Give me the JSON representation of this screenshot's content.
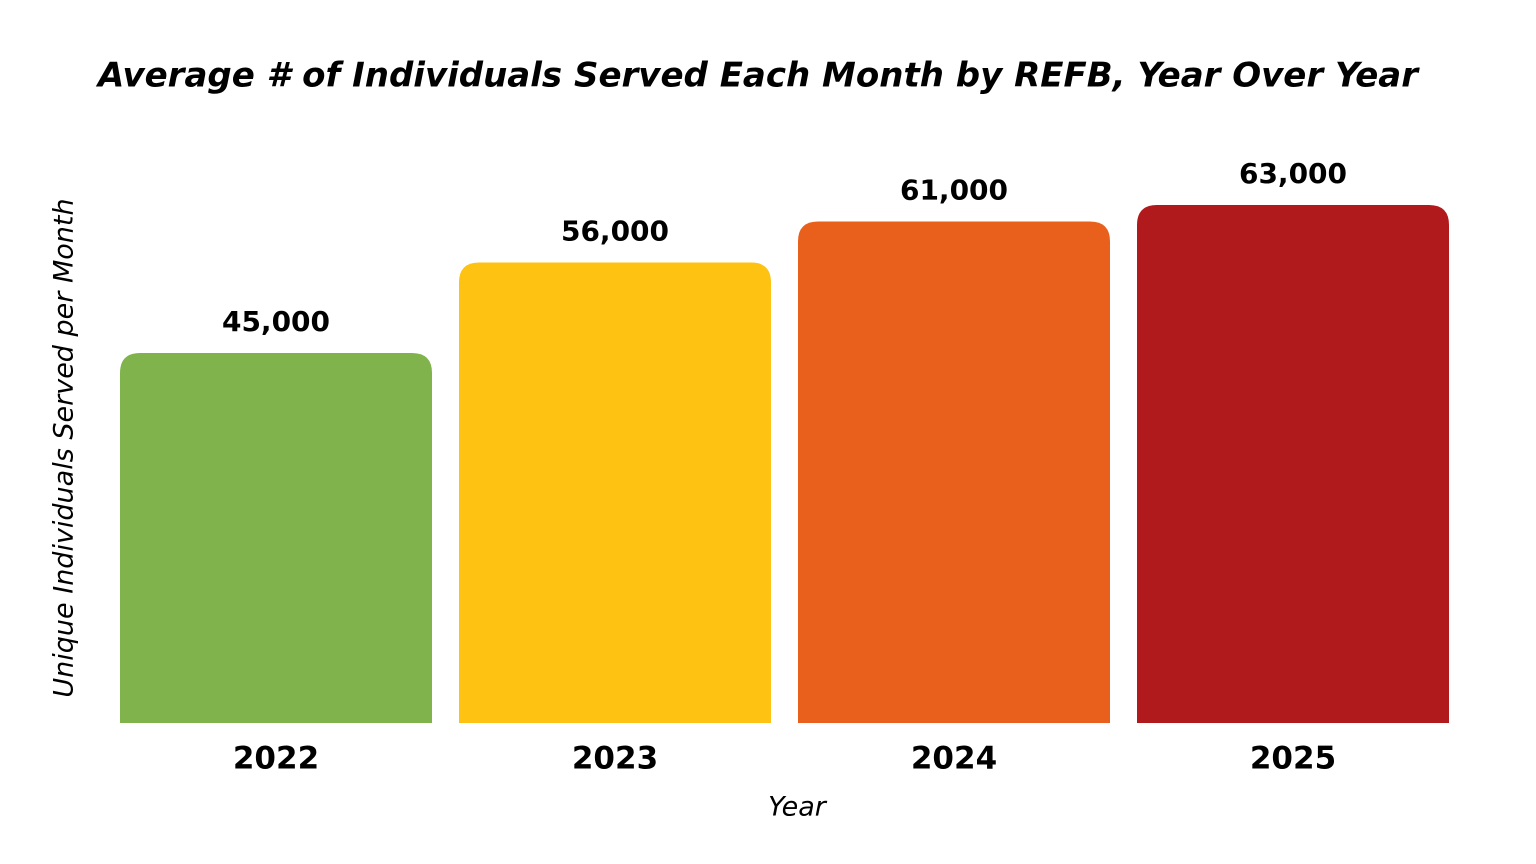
{
  "chart_data": {
    "type": "bar",
    "title": "Average # of Individuals Served Each Month by REFB, Year Over Year",
    "x_label": "Year",
    "y_label": "Unique Individuals Served per Month",
    "categories": [
      "2022",
      "2023",
      "2024",
      "2025"
    ],
    "values": [
      45000,
      56000,
      61000,
      63000
    ],
    "value_labels": [
      "45,000",
      "56,000",
      "61,000",
      "63,000"
    ],
    "colors": [
      "#80b34c",
      "#fdc212",
      "#e8601c",
      "#b11a1d"
    ]
  }
}
